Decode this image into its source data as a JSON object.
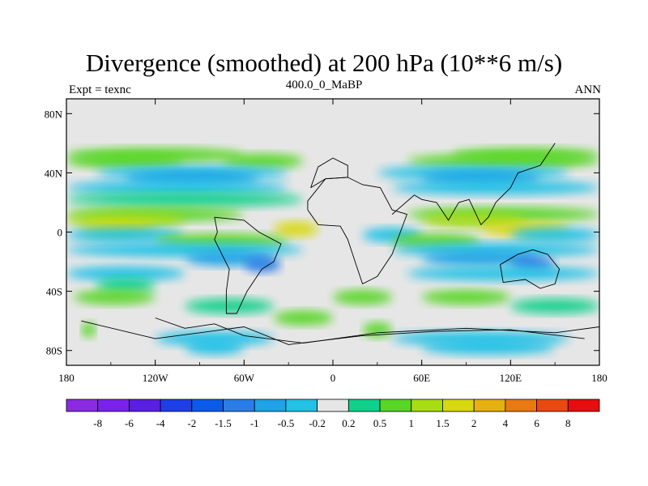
{
  "chart_data": {
    "type": "heatmap",
    "title": "Divergence (smoothed) at 200 hPa (10**6 m/s)",
    "left_label": "Expt = texnc",
    "center_label": "400.0_0_MaBP",
    "right_label": "ANN",
    "x_ticks": [
      "180",
      "120W",
      "60W",
      "0",
      "60E",
      "120E",
      "180"
    ],
    "y_ticks": [
      "80N",
      "40N",
      "0",
      "40S",
      "80S"
    ],
    "xlim": [
      -180,
      180
    ],
    "ylim": [
      -90,
      90
    ],
    "colorbar_labels": [
      "-8",
      "-6",
      "-4",
      "-2",
      "-1.5",
      "-1",
      "-0.5",
      "-0.2",
      "0.2",
      "0.5",
      "1",
      "1.5",
      "2",
      "4",
      "6",
      "8"
    ],
    "colorbar_colors": [
      "#8a2be2",
      "#7a22ea",
      "#5a1fe0",
      "#1f3fe6",
      "#0b5be8",
      "#2a7de6",
      "#1fa2e6",
      "#22c1e6",
      "#e6e6e6",
      "#10d08a",
      "#58d626",
      "#a8dc14",
      "#d8d810",
      "#e6b012",
      "#e87a12",
      "#e84a10",
      "#e60e0e"
    ],
    "background_color": "#e6e6e6",
    "bands": [
      {
        "lat": 52,
        "level": 0.5,
        "lon_ranges": [
          [
            -180,
            -60
          ],
          [
            80,
            180
          ]
        ]
      },
      {
        "lat": 48,
        "level": 0.5,
        "lon_ranges": [
          [
            -180,
            -100
          ],
          [
            -75,
            -20
          ],
          [
            50,
            180
          ]
        ]
      },
      {
        "lat": 40,
        "level": -0.5,
        "lon_ranges": [
          [
            -160,
            -30
          ],
          [
            30,
            160
          ]
        ]
      },
      {
        "lat": 36,
        "level": -1,
        "lon_ranges": [
          [
            -140,
            -50
          ],
          [
            60,
            140
          ]
        ]
      },
      {
        "lat": 30,
        "level": -0.5,
        "lon_ranges": [
          [
            -180,
            -30
          ],
          [
            40,
            180
          ]
        ]
      },
      {
        "lat": 22,
        "level": 0.2,
        "lon_ranges": [
          [
            -180,
            -20
          ]
        ]
      },
      {
        "lat": 12,
        "level": 0.5,
        "lon_ranges": [
          [
            -180,
            -60
          ],
          [
            50,
            180
          ]
        ]
      },
      {
        "lat": 8,
        "level": 1,
        "lon_ranges": [
          [
            -180,
            -100
          ],
          [
            60,
            130
          ]
        ]
      },
      {
        "lat": 2,
        "level": 1.5,
        "lon_ranges": [
          [
            -170,
            -120
          ],
          [
            -40,
            -10
          ],
          [
            100,
            160
          ]
        ]
      },
      {
        "lat": -2,
        "level": -0.5,
        "lon_ranges": [
          [
            -180,
            -100
          ],
          [
            20,
            60
          ],
          [
            120,
            180
          ]
        ]
      },
      {
        "lat": -6,
        "level": 0.5,
        "lon_ranges": [
          [
            -120,
            -30
          ],
          [
            40,
            100
          ]
        ]
      },
      {
        "lat": -12,
        "level": -0.5,
        "lon_ranges": [
          [
            -180,
            -20
          ],
          [
            40,
            180
          ]
        ]
      },
      {
        "lat": -18,
        "level": -1,
        "lon_ranges": [
          [
            -100,
            -40
          ],
          [
            60,
            140
          ]
        ]
      },
      {
        "lat": -22,
        "level": -1.5,
        "lon_ranges": [
          [
            -60,
            -35
          ],
          [
            120,
            150
          ]
        ]
      },
      {
        "lat": -28,
        "level": -0.5,
        "lon_ranges": [
          [
            -180,
            -100
          ],
          [
            50,
            180
          ]
        ]
      },
      {
        "lat": -36,
        "level": 0.2,
        "lon_ranges": [
          [
            -160,
            -120
          ]
        ]
      },
      {
        "lat": -44,
        "level": 0.5,
        "lon_ranges": [
          [
            -175,
            -120
          ],
          [
            0,
            40
          ],
          [
            60,
            120
          ]
        ]
      },
      {
        "lat": -50,
        "level": 0.2,
        "lon_ranges": [
          [
            -100,
            -40
          ],
          [
            120,
            180
          ]
        ]
      },
      {
        "lat": -58,
        "level": 0.5,
        "lon_ranges": [
          [
            -40,
            0
          ]
        ]
      },
      {
        "lat": -66,
        "level": 0.5,
        "lon_ranges": [
          [
            -170,
            -160
          ],
          [
            20,
            40
          ]
        ]
      },
      {
        "lat": -72,
        "level": -0.5,
        "lon_ranges": [
          [
            -120,
            -40
          ],
          [
            40,
            160
          ]
        ]
      },
      {
        "lat": -78,
        "level": -0.5,
        "lon_ranges": [
          [
            -100,
            -60
          ],
          [
            60,
            150
          ]
        ]
      }
    ]
  }
}
